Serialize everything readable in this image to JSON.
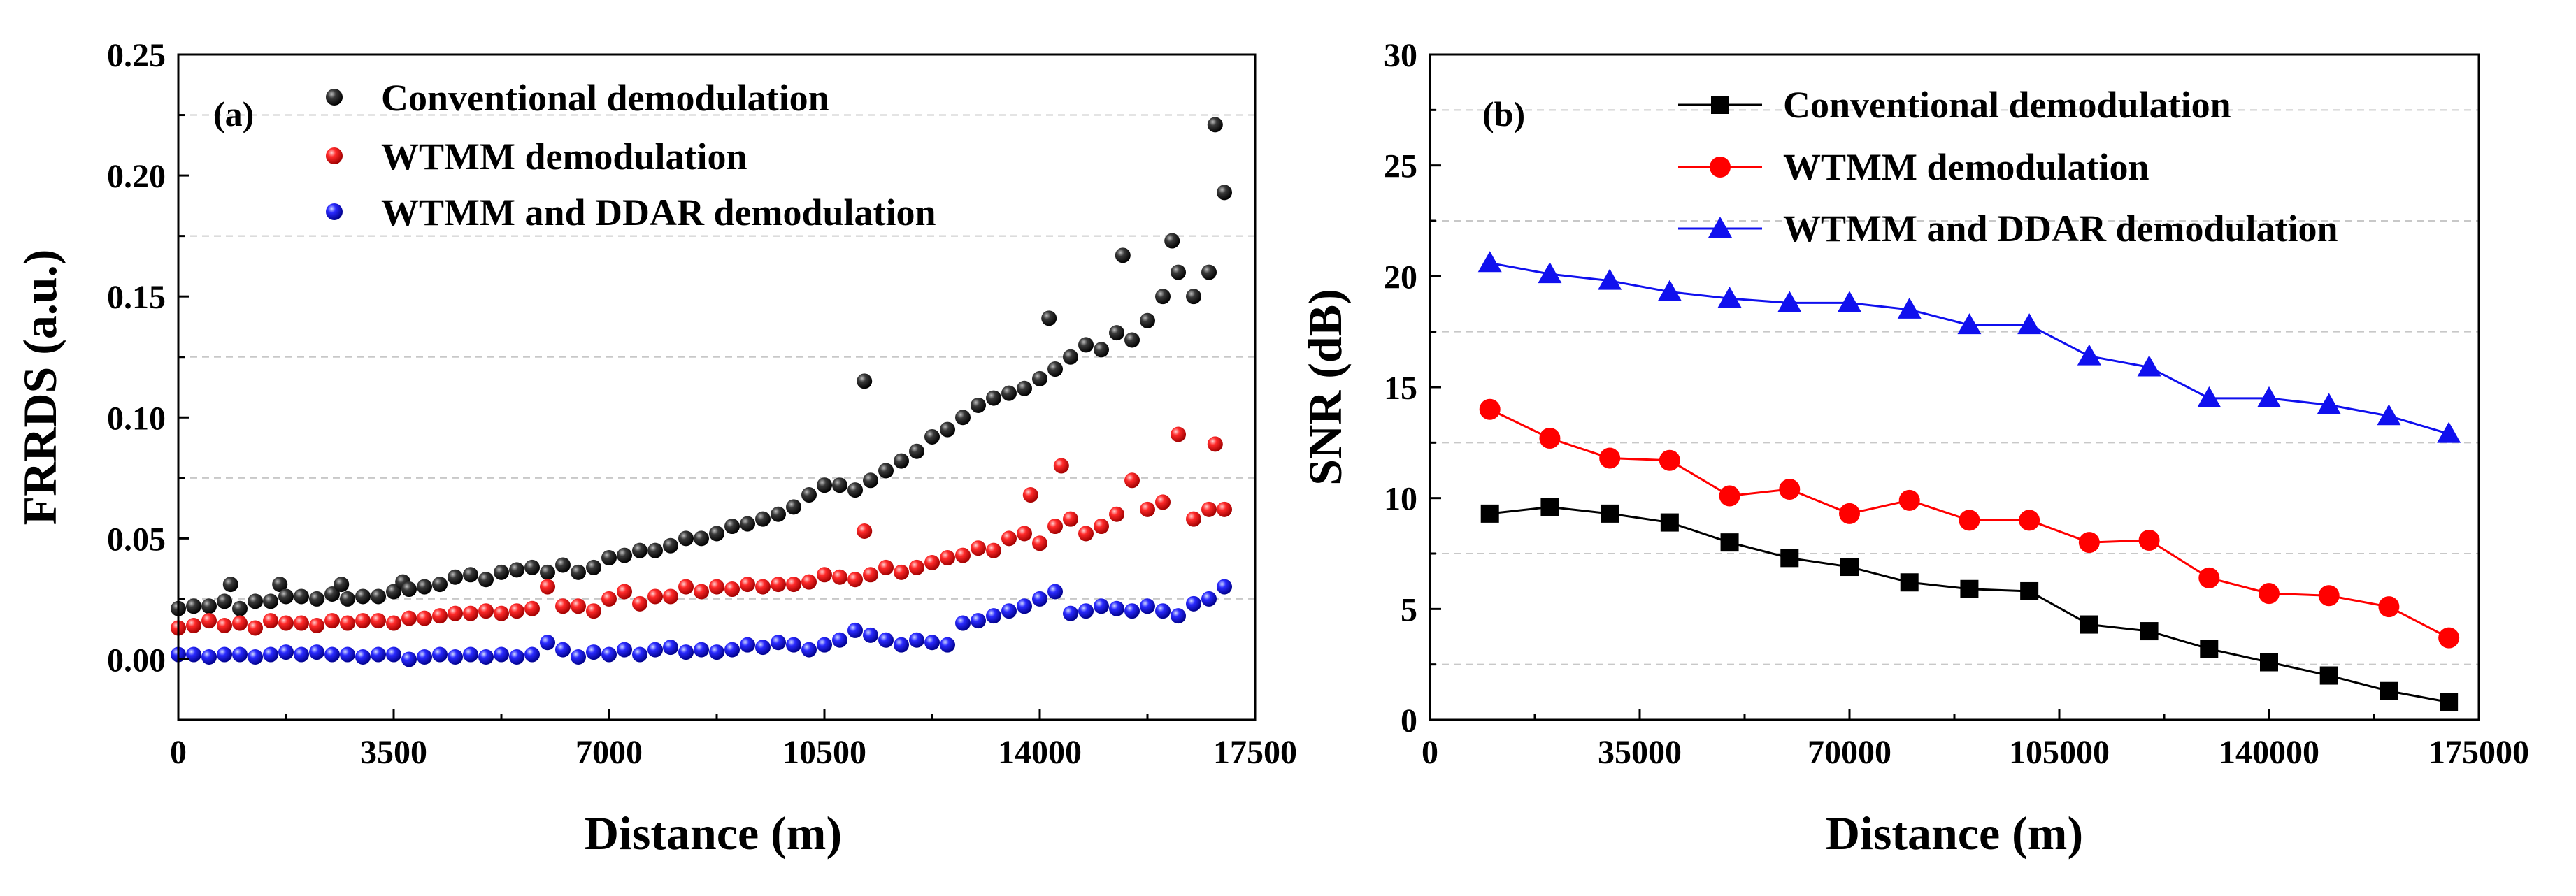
{
  "colors": {
    "black": "#000000",
    "red": "#ff0000",
    "blue": "#1010ee",
    "grid": "#c8c8c8"
  },
  "chart_data": [
    {
      "type": "scatter",
      "panel_label": "(a)",
      "xlabel": "Distance (m)",
      "ylabel": "FRRDS (a.u.)",
      "xlim": [
        0,
        17500
      ],
      "ylim": [
        -0.025,
        0.25
      ],
      "xticks": [
        0,
        3500,
        7000,
        10500,
        14000,
        17500
      ],
      "xtick_labels": [
        "0",
        "3500",
        "7000",
        "10500",
        "14000",
        "17500"
      ],
      "yticks": [
        0.0,
        0.05,
        0.1,
        0.15,
        0.2,
        0.25
      ],
      "ytick_labels": [
        "0.00",
        "0.05",
        "0.10",
        "0.15",
        "0.20",
        "0.25"
      ],
      "grid": "horizontal dashed",
      "legend_position": "top-left",
      "series": [
        {
          "name": "Conventional demodulation",
          "color": "#000000",
          "marker": "sphere",
          "points": [
            [
              0,
              0.021
            ],
            [
              250,
              0.022
            ],
            [
              500,
              0.022
            ],
            [
              750,
              0.024
            ],
            [
              850,
              0.031
            ],
            [
              1000,
              0.021
            ],
            [
              1250,
              0.024
            ],
            [
              1500,
              0.024
            ],
            [
              1650,
              0.031
            ],
            [
              1750,
              0.026
            ],
            [
              2000,
              0.026
            ],
            [
              2250,
              0.025
            ],
            [
              2500,
              0.027
            ],
            [
              2650,
              0.031
            ],
            [
              2750,
              0.025
            ],
            [
              3000,
              0.026
            ],
            [
              3250,
              0.026
            ],
            [
              3500,
              0.028
            ],
            [
              3650,
              0.032
            ],
            [
              3750,
              0.029
            ],
            [
              4000,
              0.03
            ],
            [
              4250,
              0.031
            ],
            [
              4500,
              0.034
            ],
            [
              4750,
              0.035
            ],
            [
              5000,
              0.033
            ],
            [
              5250,
              0.036
            ],
            [
              5500,
              0.037
            ],
            [
              5750,
              0.038
            ],
            [
              6000,
              0.036
            ],
            [
              6250,
              0.039
            ],
            [
              6500,
              0.036
            ],
            [
              6750,
              0.038
            ],
            [
              7000,
              0.042
            ],
            [
              7250,
              0.043
            ],
            [
              7500,
              0.045
            ],
            [
              7750,
              0.045
            ],
            [
              8000,
              0.047
            ],
            [
              8250,
              0.05
            ],
            [
              8500,
              0.05
            ],
            [
              8750,
              0.052
            ],
            [
              9000,
              0.055
            ],
            [
              9250,
              0.056
            ],
            [
              9500,
              0.058
            ],
            [
              9750,
              0.06
            ],
            [
              10000,
              0.063
            ],
            [
              10250,
              0.068
            ],
            [
              10500,
              0.072
            ],
            [
              10750,
              0.072
            ],
            [
              11000,
              0.07
            ],
            [
              11150,
              0.115
            ],
            [
              11250,
              0.074
            ],
            [
              11500,
              0.078
            ],
            [
              11750,
              0.082
            ],
            [
              12000,
              0.086
            ],
            [
              12250,
              0.092
            ],
            [
              12500,
              0.095
            ],
            [
              12750,
              0.1
            ],
            [
              13000,
              0.105
            ],
            [
              13250,
              0.108
            ],
            [
              13500,
              0.11
            ],
            [
              13750,
              0.112
            ],
            [
              14000,
              0.116
            ],
            [
              14150,
              0.141
            ],
            [
              14250,
              0.12
            ],
            [
              14500,
              0.125
            ],
            [
              14750,
              0.13
            ],
            [
              15000,
              0.128
            ],
            [
              15250,
              0.135
            ],
            [
              15350,
              0.167
            ],
            [
              15500,
              0.132
            ],
            [
              15750,
              0.14
            ],
            [
              16000,
              0.15
            ],
            [
              16150,
              0.173
            ],
            [
              16250,
              0.16
            ],
            [
              16500,
              0.15
            ],
            [
              16750,
              0.16
            ],
            [
              16850,
              0.221
            ],
            [
              17000,
              0.193
            ]
          ]
        },
        {
          "name": "WTMM demodulation",
          "color": "#ff0000",
          "marker": "sphere",
          "points": [
            [
              0,
              0.013
            ],
            [
              250,
              0.014
            ],
            [
              500,
              0.016
            ],
            [
              750,
              0.014
            ],
            [
              1000,
              0.015
            ],
            [
              1250,
              0.013
            ],
            [
              1500,
              0.016
            ],
            [
              1750,
              0.015
            ],
            [
              2000,
              0.015
            ],
            [
              2250,
              0.014
            ],
            [
              2500,
              0.016
            ],
            [
              2750,
              0.015
            ],
            [
              3000,
              0.016
            ],
            [
              3250,
              0.016
            ],
            [
              3500,
              0.015
            ],
            [
              3750,
              0.017
            ],
            [
              4000,
              0.017
            ],
            [
              4250,
              0.018
            ],
            [
              4500,
              0.019
            ],
            [
              4750,
              0.019
            ],
            [
              5000,
              0.02
            ],
            [
              5250,
              0.019
            ],
            [
              5500,
              0.02
            ],
            [
              5750,
              0.021
            ],
            [
              6000,
              0.03
            ],
            [
              6250,
              0.022
            ],
            [
              6500,
              0.022
            ],
            [
              6750,
              0.02
            ],
            [
              7000,
              0.025
            ],
            [
              7250,
              0.028
            ],
            [
              7500,
              0.023
            ],
            [
              7750,
              0.026
            ],
            [
              8000,
              0.026
            ],
            [
              8250,
              0.03
            ],
            [
              8500,
              0.028
            ],
            [
              8750,
              0.03
            ],
            [
              9000,
              0.029
            ],
            [
              9250,
              0.031
            ],
            [
              9500,
              0.03
            ],
            [
              9750,
              0.031
            ],
            [
              10000,
              0.031
            ],
            [
              10250,
              0.032
            ],
            [
              10500,
              0.035
            ],
            [
              10750,
              0.034
            ],
            [
              11000,
              0.033
            ],
            [
              11150,
              0.053
            ],
            [
              11250,
              0.035
            ],
            [
              11500,
              0.038
            ],
            [
              11750,
              0.036
            ],
            [
              12000,
              0.038
            ],
            [
              12250,
              0.04
            ],
            [
              12500,
              0.042
            ],
            [
              12750,
              0.043
            ],
            [
              13000,
              0.046
            ],
            [
              13250,
              0.045
            ],
            [
              13500,
              0.05
            ],
            [
              13750,
              0.052
            ],
            [
              13850,
              0.068
            ],
            [
              14000,
              0.048
            ],
            [
              14250,
              0.055
            ],
            [
              14350,
              0.08
            ],
            [
              14500,
              0.058
            ],
            [
              14750,
              0.052
            ],
            [
              15000,
              0.055
            ],
            [
              15250,
              0.06
            ],
            [
              15500,
              0.074
            ],
            [
              15750,
              0.062
            ],
            [
              16000,
              0.065
            ],
            [
              16250,
              0.093
            ],
            [
              16500,
              0.058
            ],
            [
              16750,
              0.062
            ],
            [
              16850,
              0.089
            ],
            [
              17000,
              0.062
            ]
          ]
        },
        {
          "name": "WTMM and DDAR demodulation",
          "color": "#1010ee",
          "marker": "sphere",
          "points": [
            [
              0,
              0.002
            ],
            [
              250,
              0.002
            ],
            [
              500,
              0.001
            ],
            [
              750,
              0.002
            ],
            [
              1000,
              0.002
            ],
            [
              1250,
              0.001
            ],
            [
              1500,
              0.002
            ],
            [
              1750,
              0.003
            ],
            [
              2000,
              0.002
            ],
            [
              2250,
              0.003
            ],
            [
              2500,
              0.002
            ],
            [
              2750,
              0.002
            ],
            [
              3000,
              0.001
            ],
            [
              3250,
              0.002
            ],
            [
              3500,
              0.002
            ],
            [
              3750,
              0.0
            ],
            [
              4000,
              0.001
            ],
            [
              4250,
              0.002
            ],
            [
              4500,
              0.001
            ],
            [
              4750,
              0.002
            ],
            [
              5000,
              0.001
            ],
            [
              5250,
              0.002
            ],
            [
              5500,
              0.001
            ],
            [
              5750,
              0.002
            ],
            [
              6000,
              0.007
            ],
            [
              6250,
              0.004
            ],
            [
              6500,
              0.001
            ],
            [
              6750,
              0.003
            ],
            [
              7000,
              0.002
            ],
            [
              7250,
              0.004
            ],
            [
              7500,
              0.002
            ],
            [
              7750,
              0.004
            ],
            [
              8000,
              0.005
            ],
            [
              8250,
              0.003
            ],
            [
              8500,
              0.004
            ],
            [
              8750,
              0.003
            ],
            [
              9000,
              0.004
            ],
            [
              9250,
              0.006
            ],
            [
              9500,
              0.005
            ],
            [
              9750,
              0.007
            ],
            [
              10000,
              0.006
            ],
            [
              10250,
              0.004
            ],
            [
              10500,
              0.006
            ],
            [
              10750,
              0.008
            ],
            [
              11000,
              0.012
            ],
            [
              11250,
              0.01
            ],
            [
              11500,
              0.008
            ],
            [
              11750,
              0.006
            ],
            [
              12000,
              0.008
            ],
            [
              12250,
              0.007
            ],
            [
              12500,
              0.006
            ],
            [
              12750,
              0.015
            ],
            [
              13000,
              0.016
            ],
            [
              13250,
              0.018
            ],
            [
              13500,
              0.02
            ],
            [
              13750,
              0.022
            ],
            [
              14000,
              0.025
            ],
            [
              14250,
              0.028
            ],
            [
              14500,
              0.019
            ],
            [
              14750,
              0.02
            ],
            [
              15000,
              0.022
            ],
            [
              15250,
              0.021
            ],
            [
              15500,
              0.02
            ],
            [
              15750,
              0.022
            ],
            [
              16000,
              0.02
            ],
            [
              16250,
              0.018
            ],
            [
              16500,
              0.023
            ],
            [
              16750,
              0.025
            ],
            [
              17000,
              0.03
            ]
          ]
        }
      ]
    },
    {
      "type": "line",
      "panel_label": "(b)",
      "xlabel": "Distance (m)",
      "ylabel": "SNR (dB)",
      "xlim": [
        0,
        175000
      ],
      "ylim": [
        0,
        30
      ],
      "xticks": [
        0,
        35000,
        70000,
        105000,
        140000,
        175000
      ],
      "xtick_labels": [
        "0",
        "35000",
        "70000",
        "105000",
        "140000",
        "175000"
      ],
      "yticks": [
        0,
        5,
        10,
        15,
        20,
        25,
        30
      ],
      "ytick_labels": [
        "0",
        "5",
        "10",
        "15",
        "20",
        "25",
        "30"
      ],
      "grid": "horizontal dashed",
      "legend_position": "top-right",
      "series": [
        {
          "name": "Conventional demodulation",
          "color": "#000000",
          "marker": "square",
          "x": [
            10000,
            20000,
            30000,
            40000,
            50000,
            60000,
            70000,
            80000,
            90000,
            100000,
            110000,
            120000,
            130000,
            140000,
            150000,
            160000,
            170000
          ],
          "values": [
            9.3,
            9.6,
            9.3,
            8.9,
            8.0,
            7.3,
            6.9,
            6.2,
            5.9,
            5.8,
            4.3,
            4.0,
            3.2,
            2.6,
            2.0,
            1.3,
            0.8
          ]
        },
        {
          "name": "WTMM demodulation",
          "color": "#ff0000",
          "marker": "circle",
          "x": [
            10000,
            20000,
            30000,
            40000,
            50000,
            60000,
            70000,
            80000,
            90000,
            100000,
            110000,
            120000,
            130000,
            140000,
            150000,
            160000,
            170000
          ],
          "values": [
            14.0,
            12.7,
            11.8,
            11.7,
            10.1,
            10.4,
            9.3,
            9.9,
            9.0,
            9.0,
            8.0,
            8.1,
            6.4,
            5.7,
            5.6,
            5.1,
            3.7
          ]
        },
        {
          "name": "WTMM and DDAR demodulation",
          "color": "#1010ee",
          "marker": "triangle",
          "x": [
            10000,
            20000,
            30000,
            40000,
            50000,
            60000,
            70000,
            80000,
            90000,
            100000,
            110000,
            120000,
            130000,
            140000,
            150000,
            160000,
            170000
          ],
          "values": [
            20.6,
            20.1,
            19.8,
            19.3,
            19.0,
            18.8,
            18.8,
            18.5,
            17.8,
            17.8,
            16.4,
            15.9,
            14.5,
            14.5,
            14.2,
            13.7,
            12.9
          ]
        }
      ]
    }
  ]
}
